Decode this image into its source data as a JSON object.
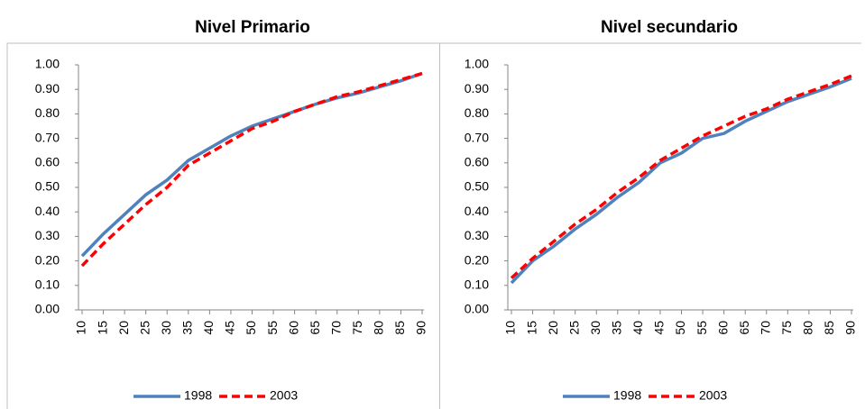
{
  "chart_data": [
    {
      "type": "line",
      "title": "Nivel Primario",
      "x": [
        10,
        15,
        20,
        25,
        30,
        35,
        40,
        45,
        50,
        55,
        60,
        65,
        70,
        75,
        80,
        85,
        90
      ],
      "xlim": [
        10,
        90
      ],
      "xticks": [
        10,
        15,
        20,
        25,
        30,
        35,
        40,
        45,
        50,
        55,
        60,
        65,
        70,
        75,
        80,
        85,
        90
      ],
      "ylim": [
        0,
        1
      ],
      "yticks": [
        {
          "value": 0,
          "label": "0.00"
        },
        {
          "value": 0.1,
          "label": "0.10"
        },
        {
          "value": 0.2,
          "label": "0.20"
        },
        {
          "value": 0.3,
          "label": "0.30"
        },
        {
          "value": 0.4,
          "label": "0.40"
        },
        {
          "value": 0.5,
          "label": "0.50"
        },
        {
          "value": 0.6,
          "label": "0.60"
        },
        {
          "value": 0.7,
          "label": "0.70"
        },
        {
          "value": 0.8,
          "label": "0.80"
        },
        {
          "value": 0.9,
          "label": "0.90"
        },
        {
          "value": 1,
          "label": "1.00"
        }
      ],
      "series": [
        {
          "name": "1998",
          "color": "#4f81bd",
          "dash": false,
          "values": [
            0.22,
            0.31,
            0.39,
            0.47,
            0.53,
            0.61,
            0.66,
            0.71,
            0.75,
            0.78,
            0.81,
            0.84,
            0.865,
            0.885,
            0.91,
            0.935,
            0.965
          ]
        },
        {
          "name": "2003",
          "color": "#ff0000",
          "dash": true,
          "values": [
            0.18,
            0.27,
            0.35,
            0.43,
            0.5,
            0.59,
            0.64,
            0.69,
            0.74,
            0.77,
            0.81,
            0.84,
            0.87,
            0.89,
            0.915,
            0.94,
            0.965
          ]
        }
      ]
    },
    {
      "type": "line",
      "title": "Nivel secundario",
      "x": [
        10,
        15,
        20,
        25,
        30,
        35,
        40,
        45,
        50,
        55,
        60,
        65,
        70,
        75,
        80,
        85,
        90
      ],
      "xlim": [
        10,
        90
      ],
      "xticks": [
        10,
        15,
        20,
        25,
        30,
        35,
        40,
        45,
        50,
        55,
        60,
        65,
        70,
        75,
        80,
        85,
        90
      ],
      "ylim": [
        0,
        1
      ],
      "yticks": [
        {
          "value": 0,
          "label": "0.00"
        },
        {
          "value": 0.1,
          "label": "0.10"
        },
        {
          "value": 0.2,
          "label": "0.20"
        },
        {
          "value": 0.3,
          "label": "0.30"
        },
        {
          "value": 0.4,
          "label": "0.40"
        },
        {
          "value": 0.5,
          "label": "0.50"
        },
        {
          "value": 0.6,
          "label": "0.60"
        },
        {
          "value": 0.7,
          "label": "0.70"
        },
        {
          "value": 0.8,
          "label": "0.80"
        },
        {
          "value": 0.9,
          "label": "0.90"
        },
        {
          "value": 1,
          "label": "1.00"
        }
      ],
      "series": [
        {
          "name": "1998",
          "color": "#4f81bd",
          "dash": false,
          "values": [
            0.11,
            0.2,
            0.26,
            0.33,
            0.39,
            0.46,
            0.52,
            0.6,
            0.64,
            0.7,
            0.72,
            0.77,
            0.81,
            0.85,
            0.88,
            0.91,
            0.945
          ]
        },
        {
          "name": "2003",
          "color": "#ff0000",
          "dash": true,
          "values": [
            0.13,
            0.21,
            0.28,
            0.35,
            0.41,
            0.48,
            0.54,
            0.61,
            0.66,
            0.71,
            0.75,
            0.79,
            0.82,
            0.86,
            0.89,
            0.92,
            0.955
          ]
        }
      ]
    }
  ]
}
